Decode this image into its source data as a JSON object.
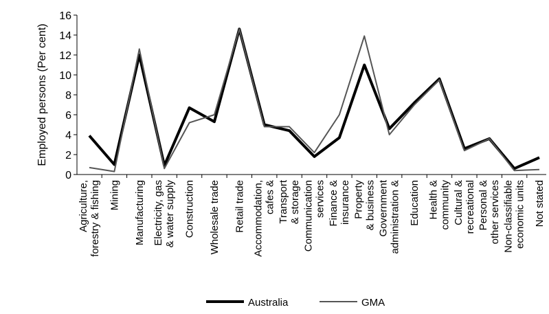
{
  "chart_data": {
    "type": "line",
    "y_label": "Employed persons (Per cent)",
    "categories": [
      "Agriculture, forestry & fishing",
      "Mining",
      "Manufacturing",
      "Electricity, gas & water supply",
      "Construction",
      "Wholesale trade",
      "Retail trade",
      "Accommodation, cafes &",
      "Transport & storage",
      "Communication services",
      "Finance & insurance",
      "Property & business",
      "Government administration &",
      "Education",
      "Health & community",
      "Cultural & recreational",
      "Personal & other services",
      "Non-classifiable economic units",
      "Not stated"
    ],
    "series": [
      {
        "name": "Australia",
        "color": "#000000",
        "values": [
          3.9,
          1.0,
          12.0,
          0.9,
          6.7,
          5.3,
          14.6,
          5.0,
          4.4,
          1.8,
          3.7,
          11.0,
          4.6,
          7.2,
          9.6,
          2.6,
          3.6,
          0.6,
          1.7
        ]
      },
      {
        "name": "GMA",
        "color": "#555555",
        "values": [
          0.7,
          0.3,
          12.6,
          0.6,
          5.2,
          6.0,
          14.6,
          4.8,
          4.8,
          2.2,
          6.0,
          13.9,
          4.0,
          7.0,
          9.5,
          2.4,
          3.6,
          0.4,
          0.5
        ]
      }
    ],
    "ylim": [
      0,
      16
    ],
    "yticks": [
      0,
      2,
      4,
      6,
      8,
      10,
      12,
      14,
      16
    ],
    "grid": false
  }
}
